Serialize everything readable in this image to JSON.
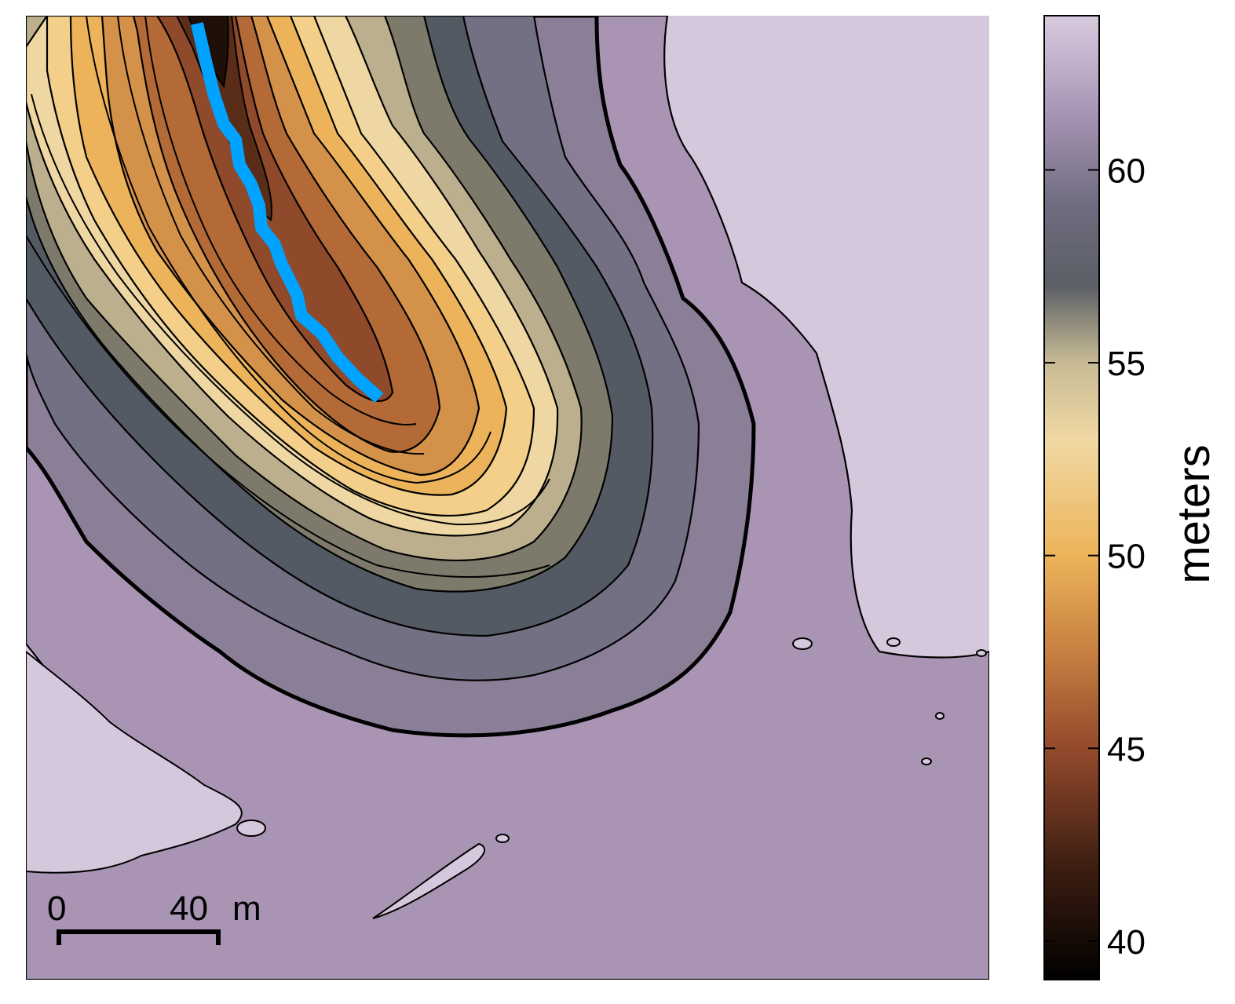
{
  "colorbar": {
    "title": "meters",
    "min": 39,
    "max": 64,
    "ticks": [
      {
        "value": 40,
        "label": "40"
      },
      {
        "value": 45,
        "label": "45"
      },
      {
        "value": 50,
        "label": "50"
      },
      {
        "value": 55,
        "label": "55"
      },
      {
        "value": 60,
        "label": "60"
      }
    ],
    "stops": [
      {
        "value": 39,
        "color": "#000000"
      },
      {
        "value": 42,
        "color": "#3f1f12"
      },
      {
        "value": 45,
        "color": "#944a2c"
      },
      {
        "value": 47.5,
        "color": "#c77f41"
      },
      {
        "value": 50,
        "color": "#edb45a"
      },
      {
        "value": 53,
        "color": "#f0d8a3"
      },
      {
        "value": 55,
        "color": "#c8bb95"
      },
      {
        "value": 57,
        "color": "#5b5f66"
      },
      {
        "value": 59,
        "color": "#6e6b7e"
      },
      {
        "value": 61.5,
        "color": "#a995b5"
      },
      {
        "value": 64,
        "color": "#d8cade"
      }
    ]
  },
  "scale_bar": {
    "start_label": "0",
    "end_label": "40",
    "unit": "m"
  },
  "profile_line_color": "#00a3ff"
}
